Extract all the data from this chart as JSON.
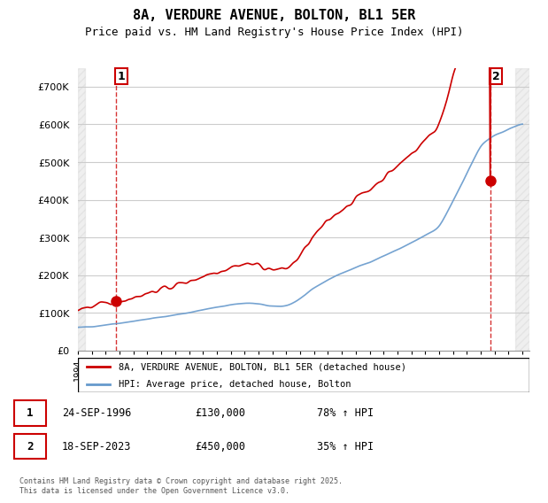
{
  "title": "8A, VERDURE AVENUE, BOLTON, BL1 5ER",
  "subtitle": "Price paid vs. HM Land Registry's House Price Index (HPI)",
  "legend_line1": "8A, VERDURE AVENUE, BOLTON, BL1 5ER (detached house)",
  "legend_line2": "HPI: Average price, detached house, Bolton",
  "footnote": "Contains HM Land Registry data © Crown copyright and database right 2025.\nThis data is licensed under the Open Government Licence v3.0.",
  "marker1_label": "1",
  "marker1_date": "24-SEP-1996",
  "marker1_price": "£130,000",
  "marker1_hpi": "78% ↑ HPI",
  "marker2_label": "2",
  "marker2_date": "18-SEP-2023",
  "marker2_price": "£450,000",
  "marker2_hpi": "35% ↑ HPI",
  "red_color": "#cc0000",
  "blue_color": "#6699cc",
  "background_hatch_color": "#dddddd",
  "grid_color": "#cccccc",
  "ylim": [
    0,
    750000
  ],
  "xlim_start": 1994.0,
  "xlim_end": 2026.5,
  "marker1_x": 1996.73,
  "marker1_y": 130000,
  "marker2_x": 2023.71,
  "marker2_y": 450000
}
